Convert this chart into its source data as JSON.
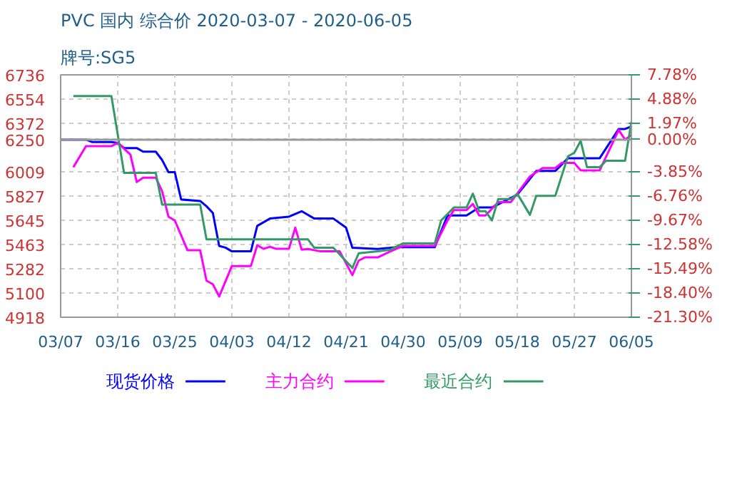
{
  "chart_data": {
    "type": "line",
    "title": "PVC 国内 综合价 2020-03-07 - 2020-06-05",
    "subtitle": "牌号:SG5",
    "xlim": [
      "2020-03-07",
      "2020-06-05"
    ],
    "xticks": [
      {
        "value": "2020-03-07",
        "label": "03/07"
      },
      {
        "value": "2020-03-16",
        "label": "03/16"
      },
      {
        "value": "2020-03-25",
        "label": "03/25"
      },
      {
        "value": "2020-04-03",
        "label": "04/03"
      },
      {
        "value": "2020-04-12",
        "label": "04/12"
      },
      {
        "value": "2020-04-21",
        "label": "04/21"
      },
      {
        "value": "2020-04-30",
        "label": "04/30"
      },
      {
        "value": "2020-05-09",
        "label": "05/09"
      },
      {
        "value": "2020-05-18",
        "label": "05/18"
      },
      {
        "value": "2020-05-27",
        "label": "05/27"
      },
      {
        "value": "2020-06-05",
        "label": "06/05"
      }
    ],
    "ylim": [
      4918,
      6736
    ],
    "yticks": [
      4918,
      5100,
      5282,
      5463,
      5645,
      5827,
      6009,
      6250,
      6372,
      6554,
      6736
    ],
    "y2lim": [
      -21.3,
      7.78
    ],
    "y2ticks": [
      {
        "value": -21.3,
        "label": "-21.30%"
      },
      {
        "value": -18.4,
        "label": "-18.40%"
      },
      {
        "value": -15.49,
        "label": "-15.49%"
      },
      {
        "value": -12.58,
        "label": "-12.58%"
      },
      {
        "value": -9.67,
        "label": "-9.67%"
      },
      {
        "value": -6.76,
        "label": "-6.76%"
      },
      {
        "value": -3.85,
        "label": "-3.85%"
      },
      {
        "value": 0,
        "label": "0.00%"
      },
      {
        "value": 1.97,
        "label": "1.97%"
      },
      {
        "value": 4.88,
        "label": "4.88%"
      },
      {
        "value": 7.78,
        "label": "7.78%"
      }
    ],
    "grid": true,
    "legend": "bottom",
    "line_style": "solid",
    "ref_lines": [
      {
        "axis": "y",
        "value": 6250,
        "color": "#999999"
      }
    ],
    "series": [
      {
        "name": "现货价格",
        "color": "#0000ff",
        "x": [
          "2020-03-07",
          "2020-03-11",
          "2020-03-12",
          "2020-03-15",
          "2020-03-16",
          "2020-03-17",
          "2020-03-19",
          "2020-03-20",
          "2020-03-22",
          "2020-03-23",
          "2020-03-24",
          "2020-03-25",
          "2020-03-26",
          "2020-03-29",
          "2020-03-30",
          "2020-03-31",
          "2020-04-01",
          "2020-04-02",
          "2020-04-03",
          "2020-04-06",
          "2020-04-07",
          "2020-04-09",
          "2020-04-12",
          "2020-04-14",
          "2020-04-16",
          "2020-04-19",
          "2020-04-21",
          "2020-04-22",
          "2020-04-26",
          "2020-04-29",
          "2020-05-05",
          "2020-05-07",
          "2020-05-10",
          "2020-05-12",
          "2020-05-14",
          "2020-05-18",
          "2020-05-21",
          "2020-05-24",
          "2020-05-26",
          "2020-05-31",
          "2020-06-03",
          "2020-06-04",
          "2020-06-05"
        ],
        "values": [
          6250,
          6250,
          6232,
          6232,
          6226,
          6187,
          6187,
          6160,
          6160,
          6097,
          6006,
          6006,
          5801,
          5790,
          5750,
          5700,
          5453,
          5440,
          5412,
          5412,
          5603,
          5658,
          5672,
          5713,
          5658,
          5658,
          5590,
          5439,
          5430,
          5444,
          5444,
          5681,
          5681,
          5741,
          5741,
          5837,
          6015,
          6015,
          6111,
          6111,
          6330,
          6330,
          6349
        ]
      },
      {
        "name": "主力合约",
        "color": "#ff00ff",
        "x": [
          "2020-03-09",
          "2020-03-11",
          "2020-03-15",
          "2020-03-16",
          "2020-03-18",
          "2020-03-19",
          "2020-03-20",
          "2020-03-22",
          "2020-03-23",
          "2020-03-24",
          "2020-03-25",
          "2020-03-27",
          "2020-03-29",
          "2020-03-30",
          "2020-03-31",
          "2020-04-01",
          "2020-04-03",
          "2020-04-06",
          "2020-04-07",
          "2020-04-08",
          "2020-04-09",
          "2020-04-10",
          "2020-04-12",
          "2020-04-13",
          "2020-04-14",
          "2020-04-15",
          "2020-04-17",
          "2020-04-20",
          "2020-04-22",
          "2020-04-23",
          "2020-04-24",
          "2020-04-26",
          "2020-04-28",
          "2020-04-30",
          "2020-05-05",
          "2020-05-07",
          "2020-05-08",
          "2020-05-10",
          "2020-05-11",
          "2020-05-12",
          "2020-05-13",
          "2020-05-15",
          "2020-05-17",
          "2020-05-20",
          "2020-05-22",
          "2020-05-24",
          "2020-05-25",
          "2020-05-27",
          "2020-05-28",
          "2020-05-31",
          "2020-06-03",
          "2020-06-04",
          "2020-06-05"
        ],
        "values": [
          6043,
          6201,
          6201,
          6226,
          6138,
          5932,
          5965,
          5965,
          5864,
          5672,
          5644,
          5420,
          5420,
          5192,
          5165,
          5074,
          5302,
          5302,
          5458,
          5431,
          5447,
          5431,
          5431,
          5590,
          5425,
          5430,
          5412,
          5412,
          5234,
          5343,
          5367,
          5367,
          5412,
          5453,
          5453,
          5644,
          5722,
          5722,
          5768,
          5681,
          5681,
          5782,
          5782,
          5974,
          6037,
          6037,
          6075,
          6075,
          6020,
          6020,
          6322,
          6250,
          6284
        ]
      },
      {
        "name": "最近合约",
        "color": "#339966",
        "x": [
          "2020-03-09",
          "2020-03-15",
          "2020-03-17",
          "2020-03-22",
          "2020-03-23",
          "2020-03-29",
          "2020-03-30",
          "2020-04-15",
          "2020-04-16",
          "2020-04-19",
          "2020-04-22",
          "2020-04-23",
          "2020-04-26",
          "2020-04-28",
          "2020-04-30",
          "2020-05-05",
          "2020-05-06",
          "2020-05-08",
          "2020-05-10",
          "2020-05-11",
          "2020-05-12",
          "2020-05-13",
          "2020-05-14",
          "2020-05-15",
          "2020-05-17",
          "2020-05-18",
          "2020-05-20",
          "2020-05-21",
          "2020-05-24",
          "2020-05-26",
          "2020-05-27",
          "2020-05-28",
          "2020-05-29",
          "2020-05-31",
          "2020-06-01",
          "2020-06-04",
          "2020-06-05"
        ],
        "values": [
          6577,
          6577,
          6001,
          6001,
          5763,
          5763,
          5502,
          5502,
          5439,
          5439,
          5288,
          5398,
          5412,
          5425,
          5472,
          5472,
          5644,
          5741,
          5741,
          5845,
          5713,
          5713,
          5644,
          5804,
          5804,
          5845,
          5686,
          5829,
          5829,
          6125,
          6152,
          6241,
          6043,
          6043,
          6092,
          6092,
          6385
        ]
      }
    ]
  }
}
